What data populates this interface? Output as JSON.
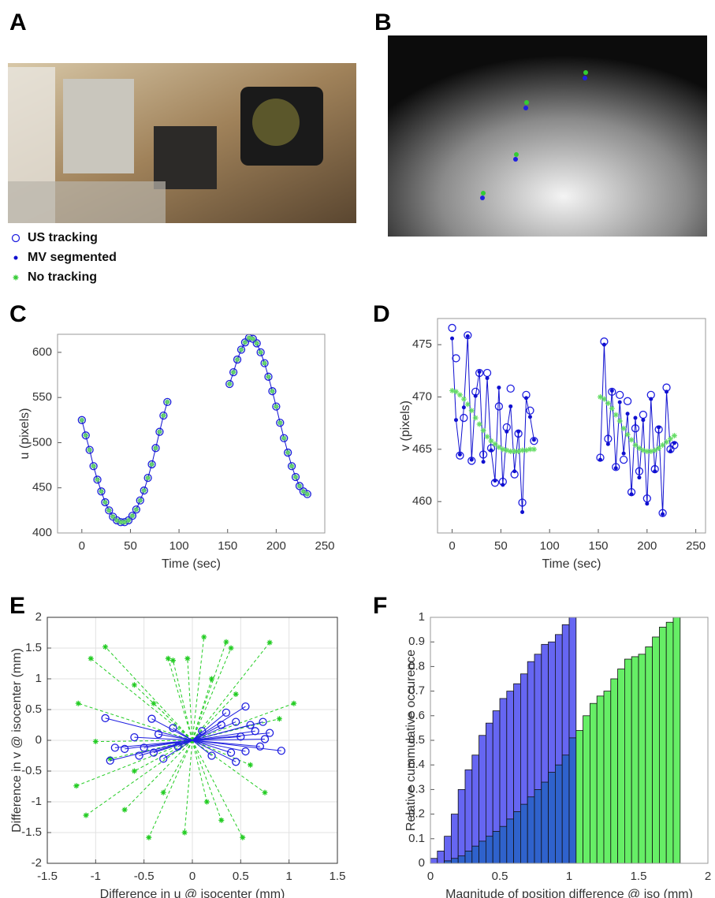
{
  "panels": {
    "a": "A",
    "b": "B"
  },
  "legend": [
    {
      "name": "US tracking",
      "color": "#2020e0",
      "marker": "circle"
    },
    {
      "name": "MV segmented",
      "color": "#1010d0",
      "marker": "dot"
    },
    {
      "name": "No tracking",
      "color": "#33cc33",
      "marker": "asterisk"
    }
  ],
  "chart_data": [
    {
      "type": "line",
      "panel_label": "C",
      "x_label": "Time (sec)",
      "y_label": "u (pixels)",
      "xlim": [
        -25,
        250
      ],
      "xticks": [
        0,
        50,
        100,
        150,
        200,
        250
      ],
      "ylim": [
        400,
        620
      ],
      "yticks": [
        400,
        450,
        500,
        550,
        600
      ],
      "grid": false,
      "x": [
        0,
        4,
        8,
        12,
        16,
        20,
        24,
        28,
        32,
        36,
        40,
        44,
        48,
        52,
        56,
        60,
        64,
        68,
        72,
        76,
        80,
        84,
        88,
        null,
        152,
        156,
        160,
        164,
        168,
        172,
        176,
        180,
        184,
        188,
        192,
        196,
        200,
        204,
        208,
        212,
        216,
        220,
        224,
        228,
        232
      ],
      "series": [
        {
          "name": "US tracking",
          "color": "#2020e0",
          "marker": "circle",
          "line": false,
          "values": [
            525,
            508,
            492,
            474,
            459,
            446,
            434,
            425,
            418,
            414,
            412,
            412,
            414,
            419,
            426,
            436,
            447,
            461,
            476,
            494,
            512,
            530,
            545,
            null,
            565,
            578,
            592,
            603,
            611,
            616,
            615,
            610,
            600,
            588,
            573,
            557,
            540,
            522,
            505,
            489,
            474,
            462,
            452,
            446,
            443
          ]
        },
        {
          "name": "MV segmented",
          "color": "#1010d0",
          "marker": "dot",
          "line": true,
          "values": [
            525,
            508,
            492,
            474,
            459,
            446,
            434,
            425,
            418,
            414,
            412,
            412,
            414,
            419,
            426,
            436,
            447,
            461,
            476,
            494,
            512,
            530,
            545,
            null,
            565,
            578,
            592,
            603,
            611,
            616,
            615,
            610,
            600,
            588,
            573,
            557,
            540,
            522,
            505,
            489,
            474,
            462,
            452,
            446,
            443
          ]
        },
        {
          "name": "No tracking",
          "color": "#66dd66",
          "marker": "asterisk",
          "line": false,
          "values": [
            525,
            508,
            492,
            474,
            459,
            446,
            434,
            425,
            418,
            414,
            412,
            412,
            414,
            419,
            426,
            436,
            447,
            461,
            476,
            494,
            512,
            530,
            545,
            null,
            565,
            578,
            592,
            603,
            611,
            616,
            615,
            610,
            600,
            588,
            573,
            557,
            540,
            522,
            505,
            489,
            474,
            462,
            452,
            446,
            443
          ]
        }
      ]
    },
    {
      "type": "line",
      "panel_label": "D",
      "x_label": "Time (sec)",
      "y_label": "v (pixels)",
      "xlim": [
        -15,
        260
      ],
      "xticks": [
        0,
        50,
        100,
        150,
        200,
        250
      ],
      "ylim": [
        457,
        477.5
      ],
      "yticks": [
        460,
        465,
        470,
        475
      ],
      "grid": false,
      "x": [
        0,
        4,
        8,
        12,
        16,
        20,
        24,
        28,
        32,
        36,
        40,
        44,
        48,
        52,
        56,
        60,
        64,
        68,
        72,
        76,
        80,
        84,
        null,
        152,
        156,
        160,
        164,
        168,
        172,
        176,
        180,
        184,
        188,
        192,
        196,
        200,
        204,
        208,
        212,
        216,
        220,
        224,
        228
      ],
      "series": [
        {
          "name": "US tracking",
          "color": "#2020e0",
          "marker": "circle",
          "line": false,
          "values": [
            476.6,
            473.7,
            464.4,
            468.0,
            475.9,
            463.9,
            470.5,
            472.3,
            464.5,
            472.3,
            465.1,
            461.8,
            469.1,
            461.9,
            467.1,
            470.8,
            462.6,
            466.5,
            459.9,
            470.2,
            468.7,
            465.8,
            null,
            464.2,
            475.3,
            466.0,
            470.5,
            463.3,
            470.2,
            464.0,
            469.6,
            460.9,
            467.0,
            462.9,
            468.3,
            460.3,
            470.2,
            463.1,
            466.9,
            458.9,
            470.9,
            465.0,
            465.4
          ]
        },
        {
          "name": "MV segmented",
          "color": "#1010d0",
          "marker": "dot",
          "line": true,
          "values": [
            475.6,
            467.8,
            464.5,
            469.0,
            475.8,
            464.0,
            470.1,
            472.4,
            463.8,
            471.8,
            464.9,
            462.0,
            470.9,
            461.6,
            466.7,
            469.1,
            462.9,
            466.7,
            459.0,
            469.9,
            468.1,
            465.9,
            null,
            464.0,
            475.0,
            465.5,
            470.6,
            463.2,
            469.5,
            464.6,
            468.4,
            460.7,
            468.0,
            462.3,
            467.8,
            459.8,
            469.8,
            462.9,
            467.1,
            458.8,
            470.5,
            464.8,
            465.6
          ]
        },
        {
          "name": "No tracking",
          "color": "#66dd66",
          "marker": "asterisk",
          "line": false,
          "values": [
            470.6,
            470.5,
            470.2,
            469.8,
            469.3,
            468.7,
            468.0,
            467.4,
            466.8,
            466.2,
            465.8,
            465.5,
            465.2,
            465.0,
            464.9,
            464.8,
            464.8,
            464.8,
            464.9,
            464.9,
            465.0,
            465.0,
            null,
            470.0,
            469.8,
            469.4,
            468.9,
            468.3,
            467.7,
            467.0,
            466.4,
            465.9,
            465.4,
            465.1,
            464.9,
            464.8,
            464.8,
            464.9,
            465.1,
            465.4,
            465.7,
            466.0,
            466.3
          ]
        }
      ]
    },
    {
      "type": "vector",
      "panel_label": "E",
      "x_label": "Difference in u @ isocenter (mm)",
      "y_label": "Difference in v @ isocenter (mm)",
      "xlim": [
        -1.5,
        1.5
      ],
      "xticks": [
        -1.5,
        -1,
        -0.5,
        0,
        0.5,
        1,
        1.5
      ],
      "ylim": [
        -2,
        2
      ],
      "yticks": [
        -2,
        -1.5,
        -1,
        -0.5,
        0,
        0.5,
        1,
        1.5,
        2
      ],
      "grid": true,
      "series": [
        {
          "name": "No tracking",
          "color": "#22cc22",
          "marker": "asterisk",
          "dashed": true,
          "x": [
            -1.05,
            -0.9,
            -1.2,
            -1.1,
            -0.45,
            -0.7,
            -1.0,
            -1.18,
            -0.6,
            -0.2,
            0.12,
            0.35,
            0.8,
            1.05,
            0.75,
            0.52,
            0.3,
            -0.08,
            -0.3,
            -0.85,
            0.6,
            0.2,
            -0.4,
            0.4,
            -0.25,
            0.9,
            -0.6,
            0.15,
            0.45,
            -0.05
          ],
          "values": [
            1.33,
            1.52,
            -0.74,
            -1.22,
            -1.58,
            -1.13,
            -0.02,
            0.6,
            0.9,
            1.3,
            1.68,
            1.6,
            1.59,
            0.6,
            -0.85,
            -1.58,
            -1.3,
            -1.5,
            -0.85,
            -0.3,
            -0.4,
            1.0,
            0.6,
            1.5,
            1.33,
            0.35,
            -0.5,
            -1.0,
            0.75,
            1.33
          ]
        },
        {
          "name": "US tracking",
          "color": "#2020e0",
          "marker": "circle",
          "dashed": false,
          "x": [
            -0.9,
            -0.85,
            -0.8,
            -0.7,
            -0.6,
            -0.55,
            -0.5,
            -0.42,
            -0.4,
            -0.35,
            -0.3,
            -0.2,
            -0.15,
            0.1,
            0.2,
            0.3,
            0.35,
            0.4,
            0.45,
            0.5,
            0.55,
            0.6,
            0.65,
            0.7,
            0.75,
            0.8,
            0.92,
            0.73,
            0.55,
            0.45
          ],
          "values": [
            0.36,
            -0.33,
            -0.12,
            -0.14,
            0.05,
            -0.25,
            -0.12,
            0.35,
            -0.2,
            0.1,
            -0.3,
            0.2,
            -0.1,
            0.15,
            -0.25,
            0.25,
            0.45,
            -0.2,
            0.3,
            0.06,
            -0.18,
            0.25,
            0.15,
            -0.1,
            0.02,
            0.12,
            -0.17,
            0.3,
            0.55,
            -0.35
          ]
        }
      ]
    },
    {
      "type": "histogram",
      "panel_label": "F",
      "x_label": "Magnitude of position difference @ iso (mm)",
      "y_label": "Relative cummulative occurence",
      "xlim": [
        0,
        2
      ],
      "xticks": [
        0,
        0.5,
        1,
        1.5,
        2
      ],
      "ylim": [
        0,
        1
      ],
      "yticks": [
        0,
        0.1,
        0.2,
        0.3,
        0.4,
        0.5,
        0.6,
        0.7,
        0.8,
        0.9,
        1
      ],
      "grid": false,
      "overlap_color": "#2f62cc",
      "bins": [
        0,
        0.05,
        0.1,
        0.15,
        0.2,
        0.25,
        0.3,
        0.35,
        0.4,
        0.45,
        0.5,
        0.55,
        0.6,
        0.65,
        0.7,
        0.75,
        0.8,
        0.85,
        0.9,
        0.95,
        1,
        1.05,
        1.1,
        1.15,
        1.2,
        1.25,
        1.3,
        1.35,
        1.4,
        1.45,
        1.5,
        1.55,
        1.6,
        1.65,
        1.7,
        1.75,
        1.8
      ],
      "series": [
        {
          "name": "US tracking",
          "color": "#6666f2",
          "values": [
            0.02,
            0.05,
            0.11,
            0.2,
            0.3,
            0.38,
            0.44,
            0.52,
            0.57,
            0.62,
            0.67,
            0.7,
            0.73,
            0.77,
            0.82,
            0.85,
            0.89,
            0.9,
            0.93,
            0.97,
            1.0,
            null,
            null,
            null,
            null,
            null,
            null,
            null,
            null,
            null,
            null,
            null,
            null,
            null,
            null,
            null
          ]
        },
        {
          "name": "No tracking",
          "color": "#66ee66",
          "values": [
            0.0,
            0.0,
            0.01,
            0.02,
            0.03,
            0.05,
            0.07,
            0.09,
            0.11,
            0.13,
            0.15,
            0.18,
            0.21,
            0.24,
            0.27,
            0.3,
            0.33,
            0.37,
            0.4,
            0.44,
            0.51,
            0.54,
            0.6,
            0.65,
            0.68,
            0.7,
            0.75,
            0.79,
            0.83,
            0.84,
            0.85,
            0.88,
            0.92,
            0.96,
            0.98,
            1.0
          ]
        }
      ]
    }
  ]
}
